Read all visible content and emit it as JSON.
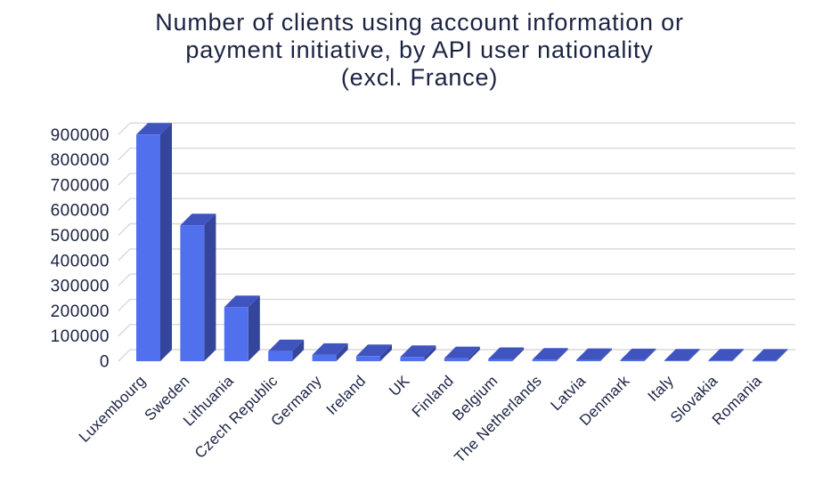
{
  "chart_data": {
    "type": "bar",
    "style": "3d",
    "title": "Number of clients using account information or payment initiative, by API user nationality (excl. France)",
    "title_lines": [
      "Number of clients using account information or",
      "payment initiative, by API user nationality",
      "(excl. France)"
    ],
    "categories": [
      "Luxembourg",
      "Sweden",
      "Lithuania",
      "Czech Republic",
      "Germany",
      "Ireland",
      "UK",
      "Finland",
      "Belgium",
      "The Netherlands",
      "Latvia",
      "Denmark",
      "Italy",
      "Slovakia",
      "Romania"
    ],
    "values": [
      900000,
      540000,
      215000,
      40000,
      25000,
      20000,
      17000,
      12000,
      9000,
      6000,
      5000,
      4000,
      3000,
      2500,
      2000
    ],
    "xlabel": "",
    "ylabel": "",
    "ylim": [
      0,
      900000
    ],
    "ytick_step": 100000,
    "yticks": [
      0,
      100000,
      200000,
      300000,
      400000,
      500000,
      600000,
      700000,
      800000,
      900000
    ],
    "grid": true,
    "legend": null,
    "colors": {
      "bar_front": "#5170ee",
      "bar_top": "#3f54bf",
      "bar_side": "#35459c",
      "grid": "#d9d9d9",
      "text": "#1b2342",
      "background": "#ffffff"
    }
  }
}
